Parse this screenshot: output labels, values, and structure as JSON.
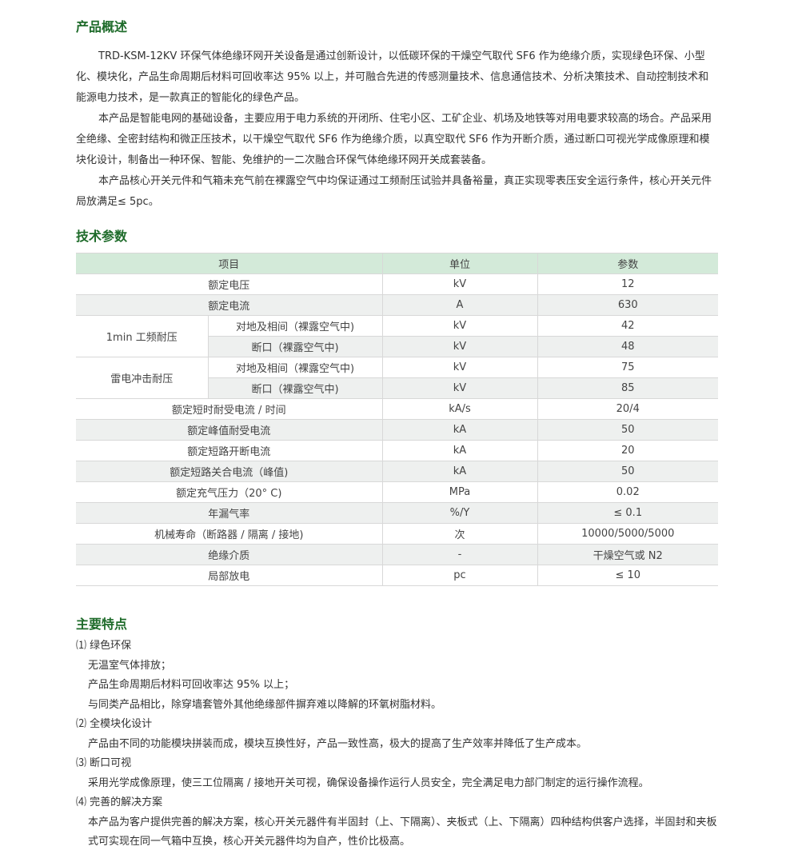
{
  "overview": {
    "title": "产品概述",
    "paragraphs": [
      "TRD-KSM-12KV 环保气体绝缘环网开关设备是通过创新设计，以低碳环保的干燥空气取代 SF6 作为绝缘介质，实现绿色环保、小型化、模块化，产品生命周期后材料可回收率达 95% 以上，并可融合先进的传感测量技术、信息通信技术、分析决策技术、自动控制技术和能源电力技术，是一款真正的智能化的绿色产品。",
      "本产品是智能电网的基础设备，主要应用于电力系统的开闭所、住宅小区、工矿企业、机场及地铁等对用电要求较高的场合。产品采用全绝缘、全密封结构和微正压技术，以干燥空气取代 SF6 作为绝缘介质，以真空取代 SF6 作为开断介质，通过断口可视光学成像原理和模块化设计，制备出一种环保、智能、免维护的一二次融合环保气体绝缘环网开关成套装备。",
      "本产品核心开关元件和气箱未充气前在裸露空气中均保证通过工频耐压试验并具备裕量，真正实现零表压安全运行条件，核心开关元件局放满足≤ 5pc。"
    ]
  },
  "specs": {
    "title": "技术参数",
    "headers": [
      "项目",
      "单位",
      "参数"
    ],
    "rows": [
      {
        "item": "额定电压",
        "unit": "kV",
        "value": "12"
      },
      {
        "item": "额定电流",
        "unit": "A",
        "value": "630"
      },
      {
        "group": "1min 工频耐压",
        "sub": "对地及相间（裸露空气中)",
        "unit": "kV",
        "value": "42"
      },
      {
        "sub": "断口（裸露空气中)",
        "unit": "kV",
        "value": "48"
      },
      {
        "group": "雷电冲击耐压",
        "sub": "对地及相间（裸露空气中)",
        "unit": "kV",
        "value": "75"
      },
      {
        "sub": "断口（裸露空气中)",
        "unit": "kV",
        "value": "85"
      },
      {
        "item": "额定短时耐受电流 / 时间",
        "unit": "kA/s",
        "value": "20/4"
      },
      {
        "item": "额定峰值耐受电流",
        "unit": "kA",
        "value": "50"
      },
      {
        "item": "额定短路开断电流",
        "unit": "kA",
        "value": "20"
      },
      {
        "item": "额定短路关合电流（峰值)",
        "unit": "kA",
        "value": "50"
      },
      {
        "item": "额定充气压力（20° C)",
        "unit": "MPa",
        "value": "0.02"
      },
      {
        "item": "年漏气率",
        "unit": "%/Y",
        "value": "≤ 0.1"
      },
      {
        "item": "机械寿命（断路器 / 隔离 / 接地)",
        "unit": "次",
        "value": "10000/5000/5000"
      },
      {
        "item": "绝缘介质",
        "unit": "-",
        "value": "干燥空气或 N2"
      },
      {
        "item": "局部放电",
        "unit": "pc",
        "value": "≤ 10"
      }
    ]
  },
  "features": {
    "title": "主要特点",
    "items": [
      {
        "title": "⑴ 绿色环保",
        "lines": [
          "无温室气体排放；",
          "产品生命周期后材料可回收率达 95% 以上；",
          "与同类产品相比，除穿墙套管外其他绝缘部件摒弃难以降解的环氧树脂材料。"
        ]
      },
      {
        "title": "⑵ 全模块化设计",
        "lines": [
          "产品由不同的功能模块拼装而成，模块互换性好，产品一致性高，极大的提高了生产效率并降低了生产成本。"
        ]
      },
      {
        "title": "⑶ 断口可视",
        "lines": [
          "采用光学成像原理，使三工位隔离 / 接地开关可视，确保设备操作运行人员安全，完全满足电力部门制定的运行操作流程。"
        ]
      },
      {
        "title": "⑷ 完善的解决方案",
        "lines": [
          "本产品为客户提供完善的解决方案，核心开关元器件有半固封（上、下隔离）、夹板式（上、下隔离）四种结构供客户选择，半固封和夹板式可实现在同一气箱中互换，核心开关元器件均为自产，性价比极高。"
        ]
      }
    ]
  },
  "colors": {
    "heading": "#1e6b2a",
    "header_bg": "#d3ead9",
    "stripe": "#eef0ef"
  }
}
